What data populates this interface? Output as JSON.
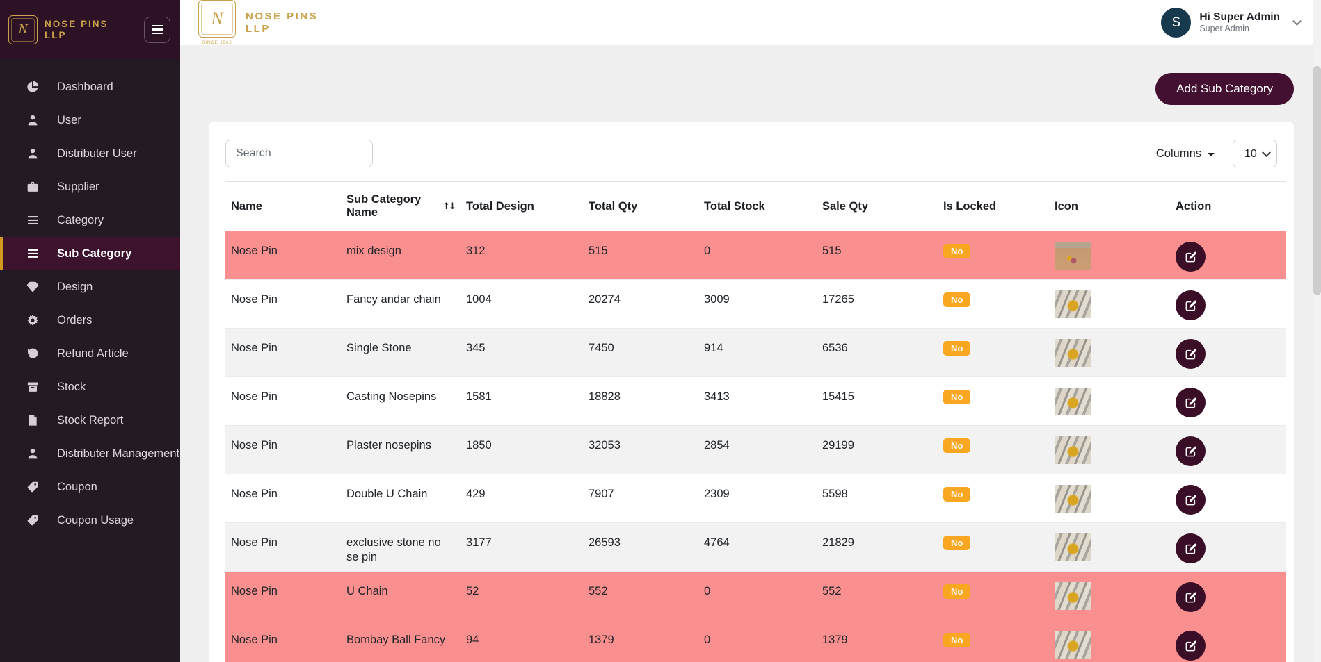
{
  "brand": {
    "name_line1": "NOSE PINS",
    "name_line2": "LLP",
    "monogram": "N",
    "since": "SINCE 1962"
  },
  "header": {
    "avatar_initial": "S",
    "greeting": "Hi Super Admin",
    "role": "Super Admin"
  },
  "sidebar": {
    "items": [
      {
        "label": "Dashboard",
        "icon": "pie-chart",
        "active": false
      },
      {
        "label": "User",
        "icon": "user",
        "active": false
      },
      {
        "label": "Distributer User",
        "icon": "user",
        "active": false
      },
      {
        "label": "Supplier",
        "icon": "briefcase",
        "active": false
      },
      {
        "label": "Category",
        "icon": "list",
        "active": false
      },
      {
        "label": "Sub Category",
        "icon": "list",
        "active": true
      },
      {
        "label": "Design",
        "icon": "diamond",
        "active": false
      },
      {
        "label": "Orders",
        "icon": "flower",
        "active": false
      },
      {
        "label": "Refund Article",
        "icon": "undo",
        "active": false
      },
      {
        "label": "Stock",
        "icon": "box",
        "active": false
      },
      {
        "label": "Stock Report",
        "icon": "file",
        "active": false
      },
      {
        "label": "Distributer Management",
        "icon": "user",
        "active": false
      },
      {
        "label": "Coupon",
        "icon": "tag",
        "active": false
      },
      {
        "label": "Coupon Usage",
        "icon": "tag",
        "active": false
      }
    ]
  },
  "actions": {
    "add_button": "Add Sub Category"
  },
  "toolbar": {
    "search_placeholder": "Search",
    "columns_label": "Columns",
    "page_size": "10"
  },
  "table": {
    "columns": [
      {
        "label": "Name",
        "sortable": false
      },
      {
        "label": "Sub Category Name",
        "sortable": true
      },
      {
        "label": "Total Design",
        "sortable": false
      },
      {
        "label": "Total Qty",
        "sortable": false
      },
      {
        "label": "Total Stock",
        "sortable": false
      },
      {
        "label": "Sale Qty",
        "sortable": false
      },
      {
        "label": "Is Locked",
        "sortable": false
      },
      {
        "label": "Icon",
        "sortable": false
      },
      {
        "label": "Action",
        "sortable": false
      }
    ],
    "rows": [
      {
        "name": "Nose Pin",
        "sub_category_name": "mix design",
        "total_design": "312",
        "total_qty": "515",
        "total_stock": "0",
        "sale_qty": "515",
        "is_locked": "No",
        "highlighted": true,
        "icon_photo": "gold-nose-pins-on-tan-surface"
      },
      {
        "name": "Nose Pin",
        "sub_category_name": "Fancy andar chain",
        "total_design": "1004",
        "total_qty": "20274",
        "total_stock": "3009",
        "sale_qty": "17265",
        "is_locked": "No",
        "highlighted": false,
        "icon_photo": "gold-nose-pin-on-striped-cloth"
      },
      {
        "name": "Nose Pin",
        "sub_category_name": "Single Stone",
        "total_design": "345",
        "total_qty": "7450",
        "total_stock": "914",
        "sale_qty": "6536",
        "is_locked": "No",
        "highlighted": false,
        "icon_photo": "gold-nose-pin-on-striped-cloth"
      },
      {
        "name": "Nose Pin",
        "sub_category_name": "Casting Nosepins",
        "total_design": "1581",
        "total_qty": "18828",
        "total_stock": "3413",
        "sale_qty": "15415",
        "is_locked": "No",
        "highlighted": false,
        "icon_photo": "gold-nose-pin-on-striped-cloth"
      },
      {
        "name": "Nose Pin",
        "sub_category_name": "Plaster nosepins",
        "total_design": "1850",
        "total_qty": "32053",
        "total_stock": "2854",
        "sale_qty": "29199",
        "is_locked": "No",
        "highlighted": false,
        "icon_photo": "gold-nose-pin-on-striped-cloth"
      },
      {
        "name": "Nose Pin",
        "sub_category_name": "Double U Chain",
        "total_design": "429",
        "total_qty": "7907",
        "total_stock": "2309",
        "sale_qty": "5598",
        "is_locked": "No",
        "highlighted": false,
        "icon_photo": "gold-nose-pin-on-striped-cloth"
      },
      {
        "name": "Nose Pin",
        "sub_category_name": "exclusive stone no se pin",
        "total_design": "3177",
        "total_qty": "26593",
        "total_stock": "4764",
        "sale_qty": "21829",
        "is_locked": "No",
        "highlighted": false,
        "icon_photo": "gold-nose-pin-on-striped-cloth"
      },
      {
        "name": "Nose Pin",
        "sub_category_name": "U Chain",
        "total_design": "52",
        "total_qty": "552",
        "total_stock": "0",
        "sale_qty": "552",
        "is_locked": "No",
        "highlighted": true,
        "icon_photo": "gold-nose-pin-on-striped-cloth"
      },
      {
        "name": "Nose Pin",
        "sub_category_name": "Bombay Ball Fancy",
        "total_design": "94",
        "total_qty": "1379",
        "total_stock": "0",
        "sale_qty": "1379",
        "is_locked": "No",
        "highlighted": true,
        "icon_photo": "gold-nose-pin-on-striped-cloth"
      }
    ]
  },
  "colors": {
    "sidebar_bg": "#241a24",
    "sidebar_top_bg": "#2d1124",
    "active_item_bg": "#3c122d",
    "active_item_border": "#d19a1f",
    "brand_gold": "#c9a24b",
    "accent_maroon": "#441031",
    "highlight_row": "#f98f8f",
    "stripe_row": "#f2f2f2",
    "locked_badge": "#f9a620",
    "avatar_bg": "#16394e"
  }
}
